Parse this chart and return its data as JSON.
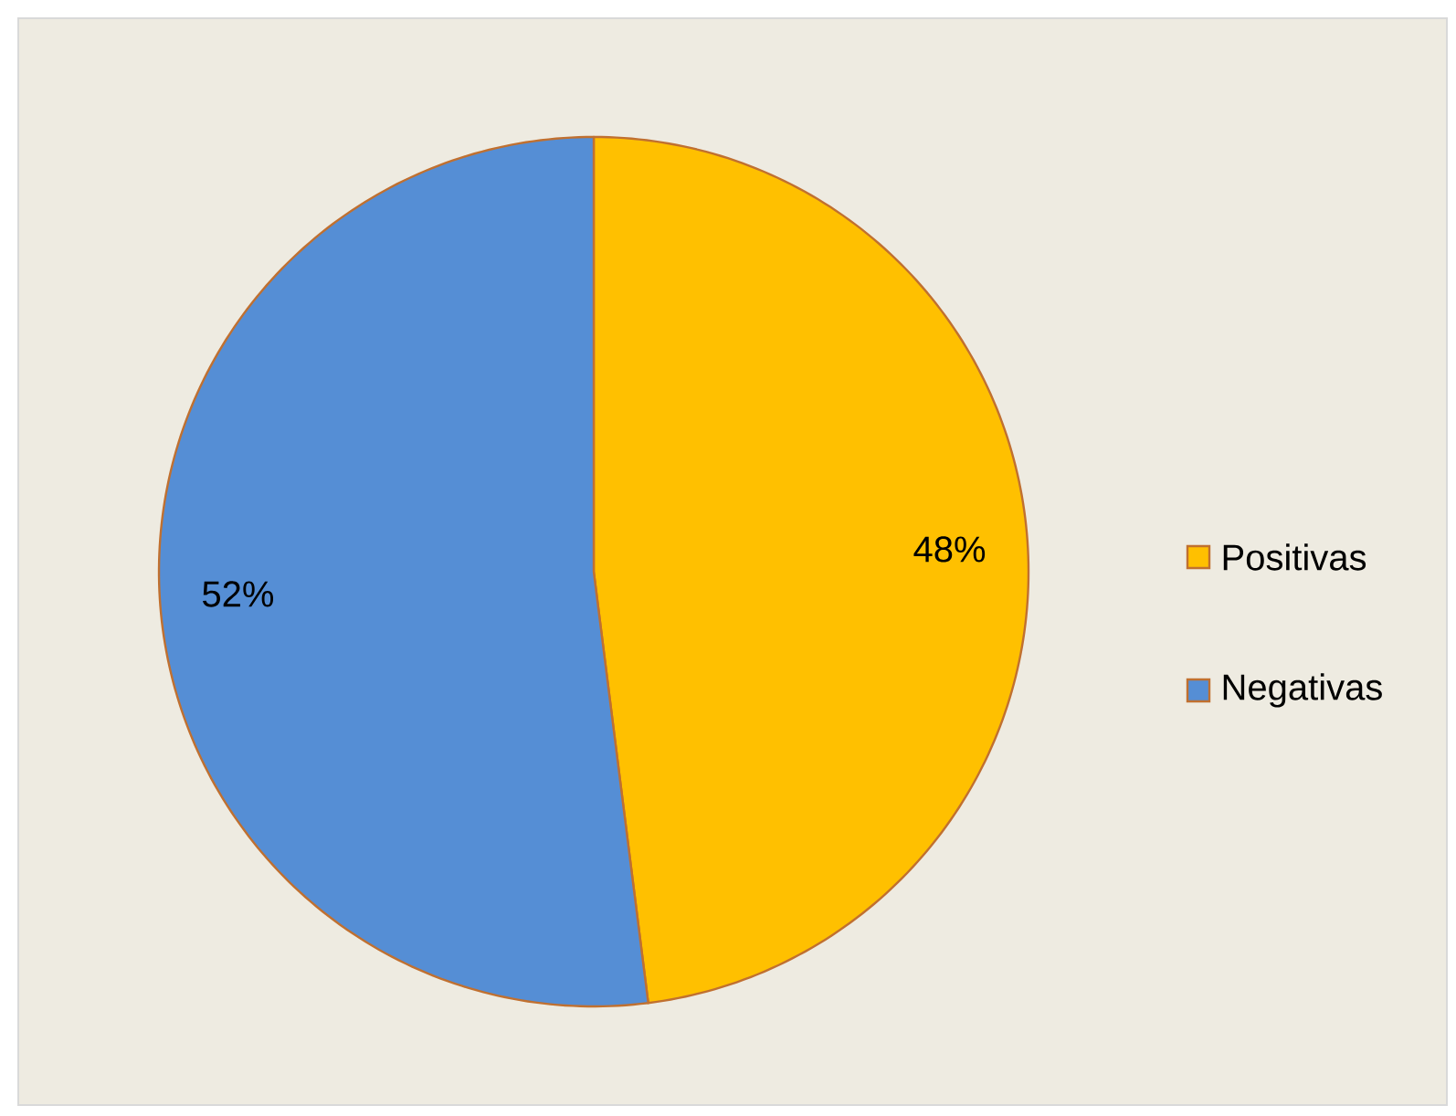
{
  "chart_data": {
    "type": "pie",
    "categories": [
      "Positivas",
      "Negativas"
    ],
    "values": [
      48,
      52
    ],
    "value_labels": [
      "48%",
      "52%"
    ],
    "colors": [
      "#ffc000",
      "#558ed5"
    ],
    "legend": "right"
  }
}
